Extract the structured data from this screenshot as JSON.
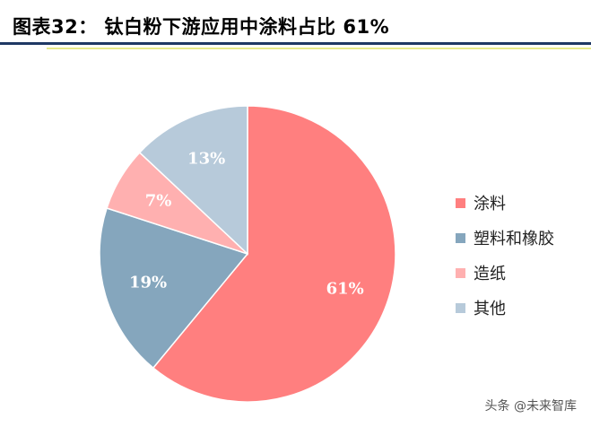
{
  "header": {
    "title": "图表32：  钛白粉下游应用中涂料占比 61%"
  },
  "chart_data": {
    "type": "pie",
    "title": "",
    "start_angle_deg": 0,
    "direction": "clockwise",
    "slices": [
      {
        "label": "涂料",
        "value": 61,
        "display": "61%",
        "color": "#ff7f7f"
      },
      {
        "label": "塑料和橡胶",
        "value": 19,
        "display": "19%",
        "color": "#85a6bd"
      },
      {
        "label": "造纸",
        "value": 7,
        "display": "7%",
        "color": "#ffb0b0"
      },
      {
        "label": "其他",
        "value": 13,
        "display": "13%",
        "color": "#b7cada"
      }
    ],
    "legend_position": "right"
  },
  "footer": {
    "watermark": "头条 @未来智库"
  }
}
